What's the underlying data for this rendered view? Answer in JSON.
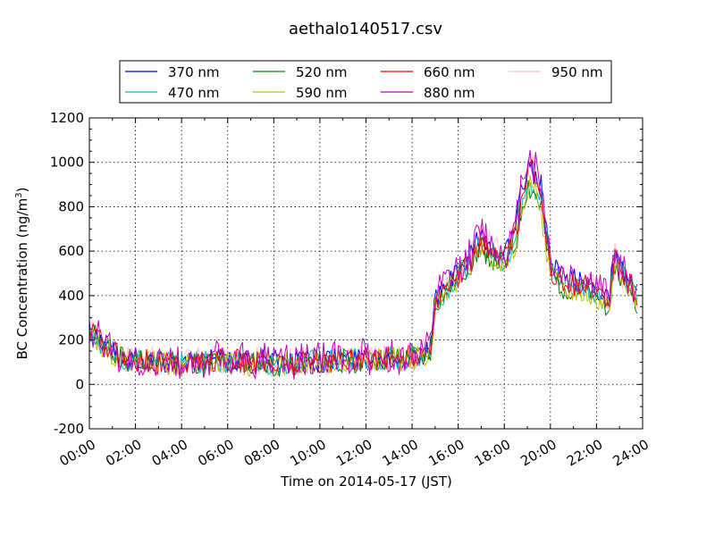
{
  "chart_data": {
    "type": "line",
    "title": "aethalo140517.csv",
    "xlabel": "Time on 2014-05-17 (JST)",
    "ylabel": "BC Concentration (ng/m",
    "ylabel_superscript": "3",
    "ylabel_suffix": ")",
    "ylim": [
      -200,
      1200
    ],
    "yticks": [
      -200,
      0,
      200,
      400,
      600,
      800,
      1000,
      1200
    ],
    "ytick_labels": [
      "-200",
      "0",
      "200",
      "400",
      "600",
      "800",
      "1000",
      "1200"
    ],
    "xlim_hours": [
      0,
      24
    ],
    "xticks_hours": [
      0,
      2,
      4,
      6,
      8,
      10,
      12,
      14,
      16,
      18,
      20,
      22,
      24
    ],
    "xtick_labels": [
      "00:00",
      "02:00",
      "04:00",
      "06:00",
      "08:00",
      "10:00",
      "12:00",
      "14:00",
      "16:00",
      "18:00",
      "20:00",
      "22:00",
      "24:00"
    ],
    "grid": true,
    "legend_placement": "top-center, outside plot",
    "series": [
      {
        "name": "370 nm",
        "color": "#0000ff"
      },
      {
        "name": "470 nm",
        "color": "#00bfbf"
      },
      {
        "name": "520 nm",
        "color": "#008000"
      },
      {
        "name": "590 nm",
        "color": "#bfbf00"
      },
      {
        "name": "660 nm",
        "color": "#ff0000"
      },
      {
        "name": "880 nm",
        "color": "#bf00bf"
      },
      {
        "name": "950 nm",
        "color": "#ffc0cb"
      }
    ],
    "x_hours": [
      0,
      0.5,
      1,
      1.5,
      2,
      2.5,
      3,
      3.5,
      4,
      4.5,
      5,
      5.5,
      6,
      6.5,
      7,
      7.5,
      8,
      8.5,
      9,
      9.5,
      10,
      10.5,
      11,
      11.5,
      12,
      12.5,
      13,
      13.5,
      14,
      14.5,
      14.8,
      15,
      15.5,
      16,
      16.5,
      17,
      17.5,
      18,
      18.5,
      18.8,
      19,
      19.3,
      19.6,
      20,
      20.5,
      21,
      21.5,
      22,
      22.5,
      22.8,
      23,
      23.5,
      23.8
    ],
    "values": {
      "370 nm": [
        260,
        200,
        150,
        120,
        120,
        110,
        100,
        105,
        95,
        110,
        100,
        115,
        105,
        110,
        100,
        110,
        95,
        105,
        100,
        115,
        105,
        110,
        120,
        115,
        120,
        115,
        125,
        120,
        130,
        140,
        160,
        380,
        440,
        500,
        560,
        680,
        600,
        580,
        680,
        900,
        1000,
        950,
        880,
        540,
        480,
        470,
        460,
        440,
        380,
        600,
        520,
        470,
        380
      ],
      "470 nm": [
        250,
        190,
        145,
        115,
        115,
        105,
        95,
        100,
        90,
        105,
        95,
        110,
        100,
        105,
        95,
        105,
        90,
        100,
        95,
        110,
        100,
        105,
        115,
        110,
        115,
        110,
        120,
        115,
        125,
        135,
        155,
        370,
        430,
        490,
        550,
        640,
        580,
        560,
        650,
        860,
        950,
        900,
        840,
        520,
        460,
        450,
        440,
        420,
        360,
        560,
        500,
        450,
        370
      ],
      "520 nm": [
        245,
        185,
        140,
        110,
        110,
        100,
        90,
        95,
        85,
        100,
        90,
        105,
        95,
        100,
        90,
        100,
        85,
        95,
        90,
        105,
        95,
        100,
        110,
        105,
        110,
        105,
        115,
        110,
        120,
        130,
        150,
        360,
        420,
        480,
        540,
        620,
        560,
        540,
        630,
        820,
        900,
        860,
        800,
        500,
        440,
        430,
        420,
        400,
        350,
        540,
        480,
        430,
        360
      ],
      "590 nm": [
        240,
        180,
        140,
        110,
        110,
        100,
        90,
        95,
        85,
        100,
        90,
        105,
        95,
        100,
        90,
        100,
        85,
        95,
        90,
        105,
        95,
        100,
        110,
        105,
        110,
        105,
        115,
        110,
        120,
        130,
        150,
        355,
        415,
        475,
        535,
        615,
        555,
        535,
        625,
        810,
        890,
        850,
        790,
        495,
        435,
        425,
        415,
        395,
        345,
        535,
        475,
        425,
        355
      ],
      "660 nm": [
        250,
        190,
        145,
        115,
        115,
        105,
        95,
        100,
        90,
        105,
        95,
        110,
        100,
        105,
        95,
        105,
        90,
        100,
        95,
        110,
        100,
        105,
        115,
        110,
        115,
        110,
        120,
        115,
        125,
        135,
        155,
        370,
        430,
        490,
        550,
        650,
        590,
        570,
        660,
        880,
        970,
        930,
        860,
        520,
        460,
        450,
        440,
        420,
        360,
        570,
        500,
        450,
        370
      ],
      "880 nm": [
        255,
        200,
        150,
        120,
        125,
        110,
        100,
        110,
        95,
        115,
        100,
        120,
        110,
        115,
        100,
        115,
        95,
        110,
        100,
        120,
        110,
        115,
        125,
        120,
        125,
        120,
        130,
        125,
        135,
        145,
        165,
        390,
        460,
        520,
        580,
        700,
        620,
        590,
        690,
        960,
        1050,
        990,
        900,
        560,
        490,
        480,
        470,
        450,
        390,
        590,
        520,
        470,
        370
      ],
      "950 nm": [
        255,
        195,
        150,
        120,
        120,
        110,
        100,
        105,
        95,
        110,
        100,
        115,
        105,
        110,
        100,
        110,
        95,
        105,
        100,
        115,
        105,
        110,
        120,
        115,
        120,
        115,
        125,
        120,
        130,
        140,
        160,
        385,
        450,
        510,
        570,
        680,
        610,
        585,
        680,
        920,
        1020,
        960,
        880,
        550,
        480,
        470,
        460,
        440,
        380,
        580,
        510,
        460,
        370
      ]
    }
  }
}
